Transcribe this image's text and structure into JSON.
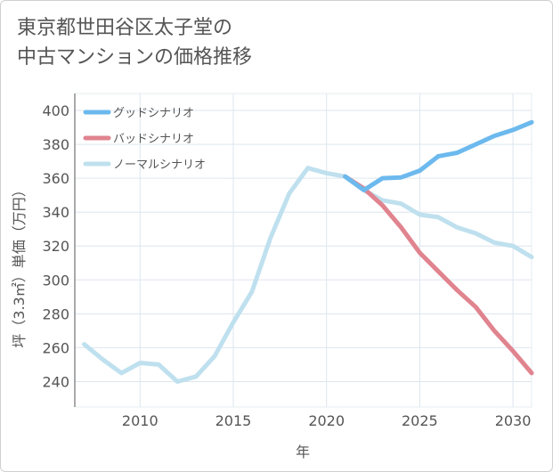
{
  "chart_data": {
    "type": "line",
    "title_line1": "東京都世田谷区太子堂の",
    "title_line2": "中古マンションの価格推移",
    "xlabel": "年",
    "ylabel": "坪（3.3㎡）単価（万円）",
    "xlim": [
      2006.5,
      2031
    ],
    "ylim": [
      225,
      410
    ],
    "x_ticks": [
      2010,
      2015,
      2020,
      2025,
      2030
    ],
    "y_ticks": [
      240,
      260,
      280,
      300,
      320,
      340,
      360,
      380,
      400
    ],
    "grid": true,
    "legend_position": "top-left",
    "series": [
      {
        "name": "グッドシナリオ",
        "color": "#6cb9ee",
        "x": [
          2021,
          2022,
          2023,
          2024,
          2025,
          2026,
          2027,
          2028,
          2029,
          2030,
          2031
        ],
        "values": [
          361,
          353,
          360,
          360.5,
          364.5,
          373,
          375,
          380,
          385,
          388.5,
          393
        ]
      },
      {
        "name": "バッドシナリオ",
        "color": "#e0848f",
        "x": [
          2021,
          2022,
          2023,
          2024,
          2025,
          2026,
          2027,
          2028,
          2029,
          2030,
          2031
        ],
        "values": [
          361,
          354,
          344,
          331,
          316,
          305,
          294,
          284,
          270,
          258,
          245
        ]
      },
      {
        "name": "ノーマルシナリオ",
        "color": "#bfe0ee",
        "x": [
          2007,
          2008,
          2009,
          2010,
          2011,
          2012,
          2013,
          2014,
          2015,
          2016,
          2017,
          2018,
          2019,
          2020,
          2021,
          2022,
          2023,
          2024,
          2025,
          2026,
          2027,
          2028,
          2029,
          2030,
          2031
        ],
        "values": [
          262,
          253,
          245,
          251,
          250,
          240,
          243,
          255,
          275,
          293,
          325,
          351,
          366,
          363,
          361,
          353,
          347,
          345,
          338.5,
          337,
          331,
          327.5,
          322,
          320,
          313.5
        ]
      }
    ]
  }
}
